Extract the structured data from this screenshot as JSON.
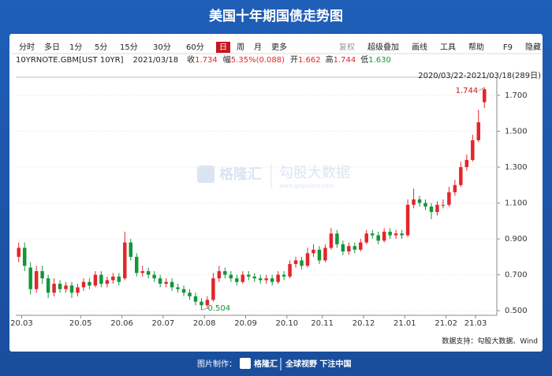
{
  "chart_data": {
    "type": "candlestick",
    "title": "美国十年期国债走势图",
    "toolbar_left": [
      "分时",
      "多日",
      "1分",
      "5分",
      "15分",
      "30分",
      "60分",
      "日",
      "周",
      "月",
      "更多"
    ],
    "toolbar_selected": "日",
    "toolbar_right": [
      "复权",
      "超级叠加",
      "画线",
      "工具",
      "帮助",
      "F9",
      "隐藏"
    ],
    "info": {
      "symbol": "10YRNOTE.GBM[UST 10YR]",
      "date": "2021/03/18",
      "close_label": "收",
      "close": "1.734",
      "change_label": "幅",
      "change": "5.35%(0.088)",
      "open_label": "开",
      "open": "1.662",
      "high_label": "高",
      "high": "1.744",
      "low_label": "低",
      "low": "1.630"
    },
    "range_label": "2020/03/22-2021/03/18(289日)",
    "watermark": [
      "格隆汇",
      "勾股大数据",
      "www.gogudata.com"
    ],
    "source": "数据支持：勾股大数据、Wind",
    "footer": {
      "made_by": "图片制作：",
      "brand": "格隆汇",
      "slogan": "全球视野 下注中国"
    },
    "annotations": {
      "max": "1.744",
      "min": "0.504"
    },
    "up_color": "#e3262a",
    "down_color": "#13963a",
    "grid": true,
    "ylim": [
      0.474,
      1.801
    ],
    "yticks": [
      {
        "value": 1.7,
        "label": "1.700"
      },
      {
        "value": 1.5,
        "label": "1.500"
      },
      {
        "value": 1.3,
        "label": "1.300"
      },
      {
        "value": 1.1,
        "label": "1.100"
      },
      {
        "value": 0.9,
        "label": "0.900"
      },
      {
        "value": 0.7,
        "label": "0.700"
      },
      {
        "value": 0.5,
        "label": "0.500"
      }
    ],
    "xlim": [
      0,
      80
    ],
    "xticks": [
      {
        "value": 1,
        "label": "20.03"
      },
      {
        "value": 11,
        "label": "20.05"
      },
      {
        "value": 18,
        "label": "20.06"
      },
      {
        "value": 25,
        "label": "20.07"
      },
      {
        "value": 32,
        "label": "20.08"
      },
      {
        "value": 39,
        "label": "20.09"
      },
      {
        "value": 46,
        "label": "20.10"
      },
      {
        "value": 52,
        "label": "20.11"
      },
      {
        "value": 59,
        "label": "20.12"
      },
      {
        "value": 66,
        "label": "21.01"
      },
      {
        "value": 73,
        "label": "21.02"
      },
      {
        "value": 78,
        "label": "21.03"
      }
    ],
    "open": [
      0.8,
      0.85,
      0.74,
      0.62,
      0.72,
      0.68,
      0.6,
      0.65,
      0.62,
      0.64,
      0.6,
      0.63,
      0.66,
      0.64,
      0.7,
      0.65,
      0.67,
      0.69,
      0.68,
      0.88,
      0.8,
      0.71,
      0.72,
      0.7,
      0.68,
      0.65,
      0.66,
      0.63,
      0.62,
      0.6,
      0.58,
      0.55,
      0.53,
      0.56,
      0.68,
      0.72,
      0.7,
      0.68,
      0.66,
      0.7,
      0.69,
      0.68,
      0.67,
      0.68,
      0.66,
      0.7,
      0.69,
      0.76,
      0.78,
      0.75,
      0.82,
      0.84,
      0.78,
      0.85,
      0.93,
      0.87,
      0.83,
      0.86,
      0.84,
      0.88,
      0.93,
      0.92,
      0.89,
      0.94,
      0.92,
      0.93,
      0.92,
      1.09,
      1.12,
      1.1,
      1.08,
      1.05,
      1.09,
      1.09,
      1.16,
      1.2,
      1.3,
      1.34,
      1.45,
      1.662
    ],
    "high": [
      0.88,
      0.88,
      0.77,
      0.75,
      0.75,
      0.7,
      0.68,
      0.67,
      0.66,
      0.66,
      0.65,
      0.68,
      0.68,
      0.72,
      0.72,
      0.69,
      0.71,
      0.71,
      0.94,
      0.9,
      0.82,
      0.75,
      0.74,
      0.72,
      0.7,
      0.68,
      0.68,
      0.65,
      0.64,
      0.62,
      0.6,
      0.57,
      0.58,
      0.71,
      0.75,
      0.74,
      0.72,
      0.7,
      0.72,
      0.72,
      0.71,
      0.7,
      0.7,
      0.7,
      0.72,
      0.72,
      0.78,
      0.8,
      0.8,
      0.85,
      0.87,
      0.86,
      0.87,
      0.96,
      0.95,
      0.89,
      0.88,
      0.88,
      0.9,
      0.95,
      0.95,
      0.94,
      0.96,
      0.96,
      0.95,
      0.95,
      1.12,
      1.18,
      1.14,
      1.12,
      1.1,
      1.11,
      1.12,
      1.19,
      1.23,
      1.33,
      1.37,
      1.48,
      1.62,
      1.744
    ],
    "low": [
      0.77,
      0.72,
      0.59,
      0.6,
      0.65,
      0.57,
      0.58,
      0.6,
      0.6,
      0.57,
      0.58,
      0.61,
      0.62,
      0.63,
      0.63,
      0.63,
      0.65,
      0.64,
      0.67,
      0.78,
      0.69,
      0.69,
      0.68,
      0.66,
      0.63,
      0.63,
      0.61,
      0.6,
      0.58,
      0.56,
      0.53,
      0.504,
      0.51,
      0.55,
      0.66,
      0.68,
      0.66,
      0.64,
      0.65,
      0.67,
      0.66,
      0.65,
      0.65,
      0.64,
      0.65,
      0.67,
      0.68,
      0.74,
      0.73,
      0.74,
      0.8,
      0.76,
      0.77,
      0.84,
      0.85,
      0.81,
      0.81,
      0.82,
      0.83,
      0.87,
      0.9,
      0.87,
      0.88,
      0.9,
      0.9,
      0.9,
      0.91,
      1.07,
      1.08,
      1.06,
      1.01,
      1.03,
      1.07,
      1.08,
      1.14,
      1.19,
      1.28,
      1.33,
      1.44,
      1.63
    ],
    "close": [
      0.85,
      0.75,
      0.62,
      0.72,
      0.68,
      0.6,
      0.65,
      0.62,
      0.64,
      0.6,
      0.63,
      0.66,
      0.64,
      0.7,
      0.65,
      0.67,
      0.69,
      0.66,
      0.88,
      0.8,
      0.71,
      0.72,
      0.7,
      0.68,
      0.65,
      0.66,
      0.63,
      0.62,
      0.6,
      0.58,
      0.55,
      0.53,
      0.56,
      0.68,
      0.72,
      0.7,
      0.68,
      0.66,
      0.7,
      0.69,
      0.68,
      0.67,
      0.68,
      0.66,
      0.7,
      0.69,
      0.76,
      0.78,
      0.75,
      0.82,
      0.84,
      0.78,
      0.85,
      0.93,
      0.87,
      0.83,
      0.86,
      0.84,
      0.88,
      0.93,
      0.92,
      0.89,
      0.94,
      0.92,
      0.93,
      0.92,
      1.09,
      1.12,
      1.1,
      1.08,
      1.05,
      1.09,
      1.09,
      1.16,
      1.2,
      1.3,
      1.34,
      1.45,
      1.55,
      1.734
    ]
  }
}
